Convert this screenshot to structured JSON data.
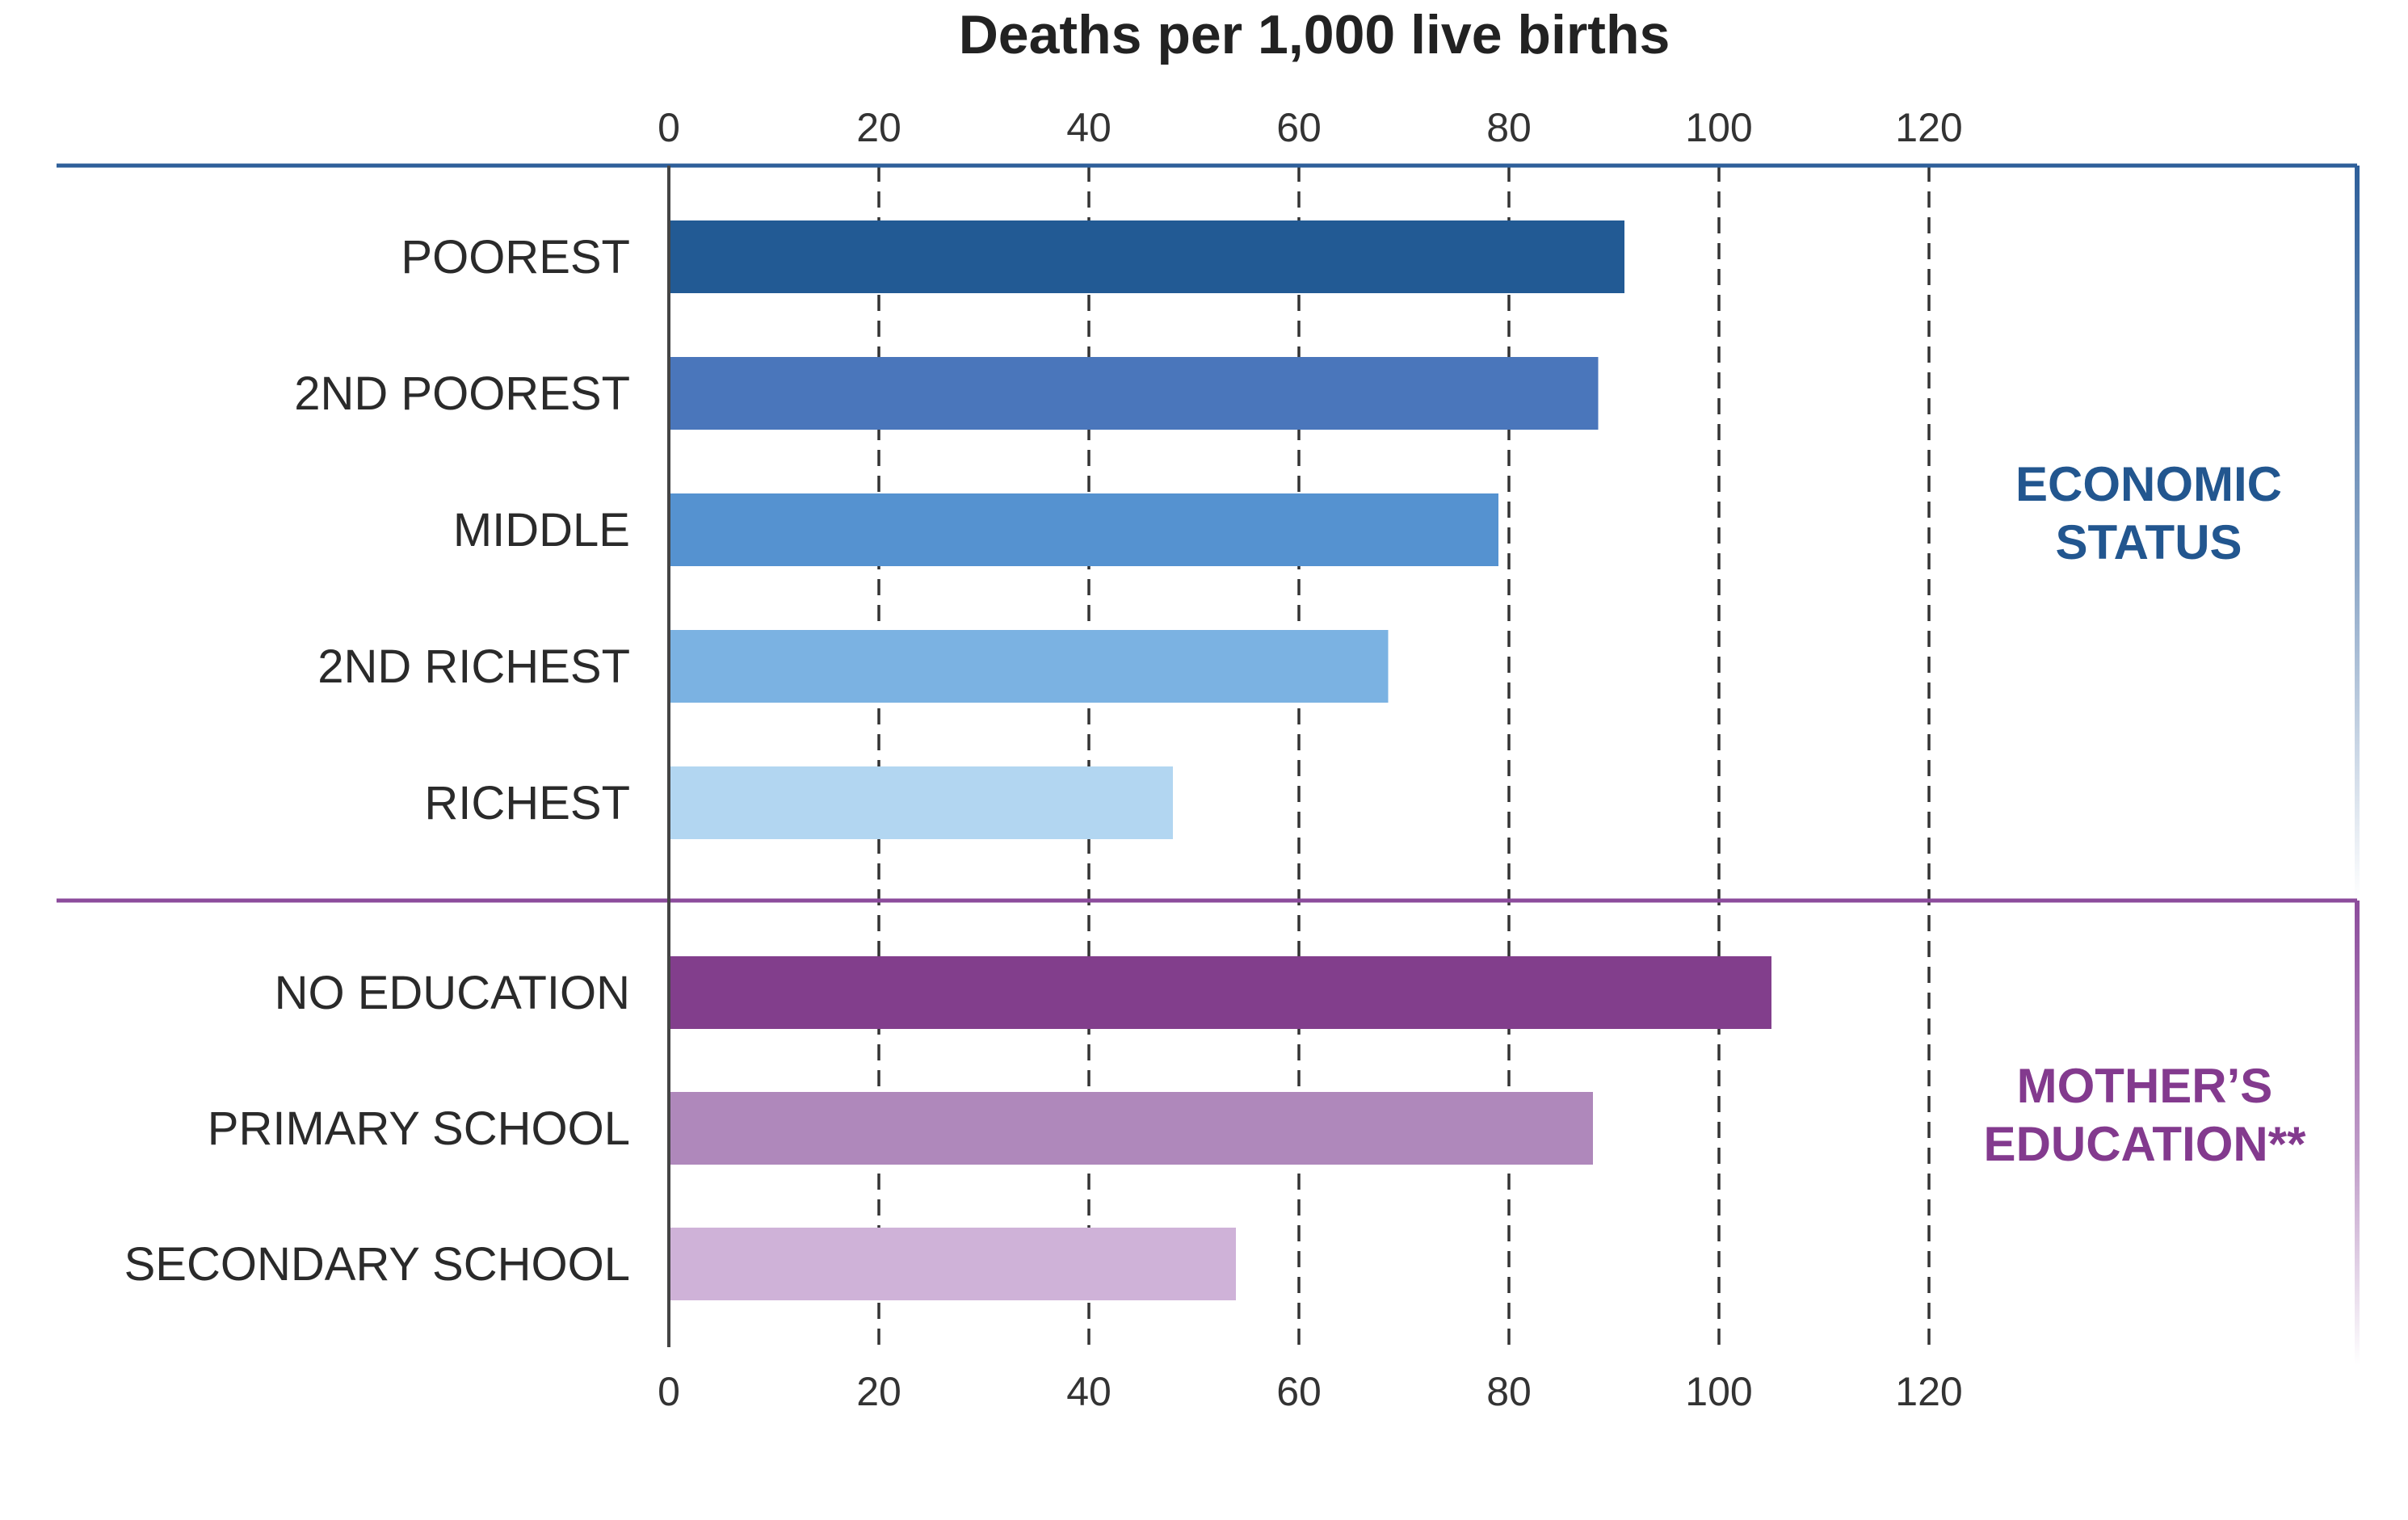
{
  "chart_data": {
    "type": "bar",
    "orientation": "horizontal",
    "title": "Deaths per 1,000 live births",
    "xlim": [
      0,
      120
    ],
    "xticks": [
      "0",
      "20",
      "40",
      "60",
      "80",
      "100",
      "120"
    ],
    "grid": true,
    "groups": [
      {
        "name": "ECONOMIC STATUS",
        "label_lines": [
          "ECONOMIC",
          "STATUS"
        ],
        "frame_color": "#2e5f9a",
        "label_color": "#22568f",
        "categories": [
          "POOREST",
          "2ND POOREST",
          "MIDDLE",
          "2ND RICHEST",
          "RICHEST"
        ],
        "values": [
          91,
          88.5,
          79,
          68.5,
          48
        ],
        "colors": [
          "#225a94",
          "#4a76bb",
          "#5592d0",
          "#7bb2e2",
          "#b2d6f1"
        ]
      },
      {
        "name": "MOTHER’S EDUCATION**",
        "label_lines": [
          "MOTHER’S",
          "EDUCATION**"
        ],
        "frame_color": "#8c4c9c",
        "label_color": "#833a8e",
        "categories": [
          "NO EDUCATION",
          "PRIMARY SCHOOL",
          "SECONDARY SCHOOL"
        ],
        "values": [
          105,
          88,
          54
        ],
        "colors": [
          "#823e8c",
          "#af88bb",
          "#cfb2d8"
        ]
      }
    ]
  }
}
